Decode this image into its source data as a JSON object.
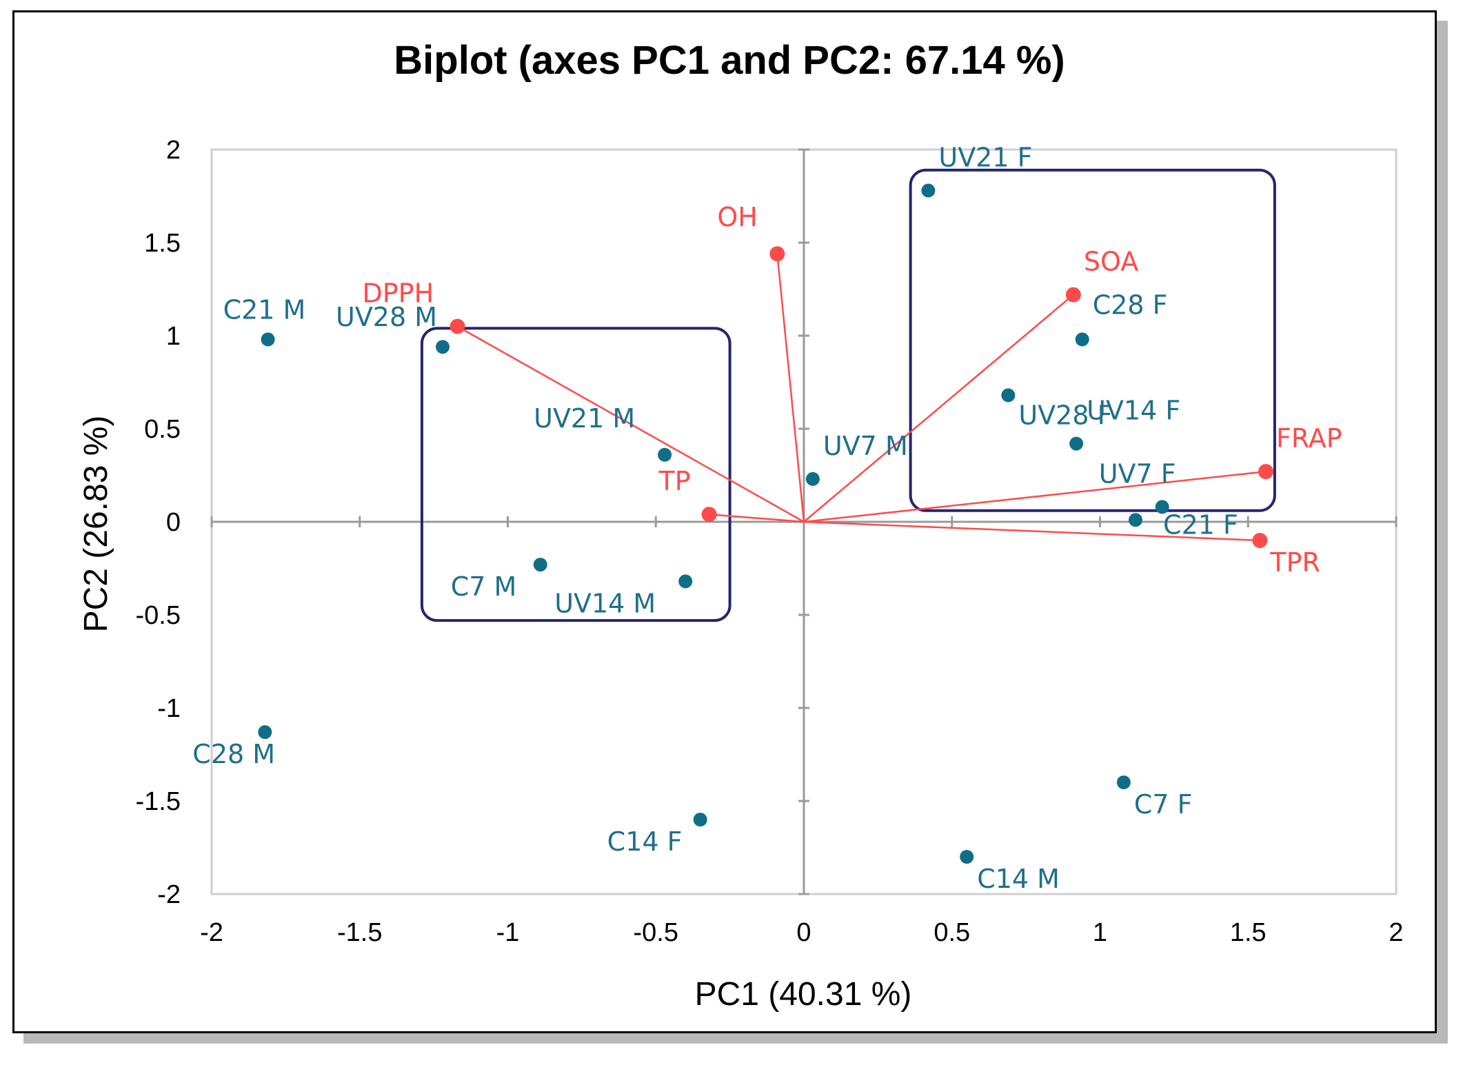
{
  "chart_data": {
    "type": "scatter",
    "title": "Biplot (axes PC1 and PC2: 67.14 %)",
    "xlabel": "PC1 (40.31 %)",
    "ylabel": "PC2 (26.83 %)",
    "xlim": [
      -2,
      2
    ],
    "ylim": [
      -2,
      2
    ],
    "xticks": [
      "-2",
      "-1.5",
      "-1",
      "-0.5",
      "0",
      "0.5",
      "1",
      "1.5",
      "2"
    ],
    "yticks": [
      "2",
      "1.5",
      "1",
      "0.5",
      "0",
      "-0.5",
      "-1",
      "-1.5",
      "-2"
    ],
    "grid": false,
    "colors": {
      "observations": "#0f6e87",
      "variables": "#ff4a4a",
      "groups": "#26256e"
    },
    "observations": [
      {
        "label": "UV21 F",
        "x": 0.42,
        "y": 1.78
      },
      {
        "label": "C28 F",
        "x": 0.94,
        "y": 0.98
      },
      {
        "label": "UV28 F",
        "x": 0.69,
        "y": 0.68
      },
      {
        "label": "UV14 F",
        "x": 0.92,
        "y": 0.42
      },
      {
        "label": "UV7 F",
        "x": 1.21,
        "y": 0.08
      },
      {
        "label": "C21 F",
        "x": 1.12,
        "y": 0.01
      },
      {
        "label": "C21 M",
        "x": -1.81,
        "y": 0.98
      },
      {
        "label": "UV28 M",
        "x": -1.22,
        "y": 0.94
      },
      {
        "label": "UV21 M",
        "x": -0.47,
        "y": 0.36
      },
      {
        "label": "UV7 M",
        "x": 0.03,
        "y": 0.23
      },
      {
        "label": "C7 M",
        "x": -0.89,
        "y": -0.23
      },
      {
        "label": "UV14 M",
        "x": -0.4,
        "y": -0.32
      },
      {
        "label": "C28 M",
        "x": -1.82,
        "y": -1.13
      },
      {
        "label": "C14 F",
        "x": -0.35,
        "y": -1.6
      },
      {
        "label": "C7 F",
        "x": 1.08,
        "y": -1.4
      },
      {
        "label": "C14 M",
        "x": 0.55,
        "y": -1.8
      }
    ],
    "variables": [
      {
        "label": "OH",
        "x": -0.09,
        "y": 1.44
      },
      {
        "label": "SOA",
        "x": 0.91,
        "y": 1.22
      },
      {
        "label": "DPPH",
        "x": -1.17,
        "y": 1.05
      },
      {
        "label": "FRAP",
        "x": 1.56,
        "y": 0.27
      },
      {
        "label": "TP",
        "x": -0.32,
        "y": 0.04
      },
      {
        "label": "TPR",
        "x": 1.54,
        "y": -0.1
      }
    ],
    "groups": [
      {
        "name": "",
        "x0": -1.29,
        "x1": -0.25,
        "y0": -0.53,
        "y1": 1.04
      },
      {
        "name": "",
        "x0": 0.36,
        "x1": 1.59,
        "y0": 0.06,
        "y1": 1.89
      }
    ]
  }
}
